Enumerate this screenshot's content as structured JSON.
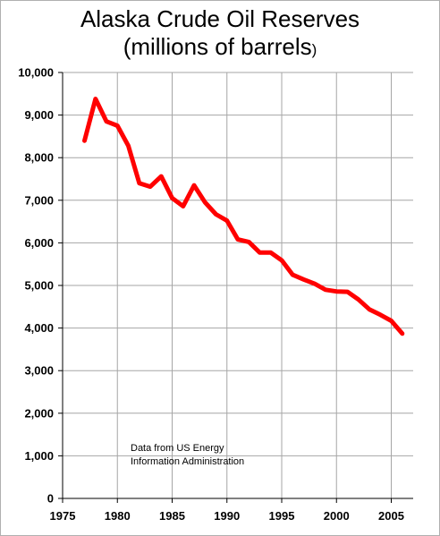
{
  "chart_data": {
    "type": "line",
    "title_line1": "Alaska Crude Oil Reserves",
    "title_line2": "(millions of barrels",
    "title_line2_paren": ")",
    "xlabel": "",
    "ylabel": "",
    "xlim": [
      1975,
      2007
    ],
    "ylim": [
      0,
      10000
    ],
    "x_ticks": [
      1975,
      1980,
      1985,
      1990,
      1995,
      2000,
      2005
    ],
    "x_tick_labels": [
      "1975",
      "1980",
      "1985",
      "1990",
      "1995",
      "2000",
      "2005"
    ],
    "y_ticks": [
      0,
      1000,
      2000,
      3000,
      4000,
      5000,
      6000,
      7000,
      8000,
      9000,
      10000
    ],
    "y_tick_labels": [
      "0",
      "1,000",
      "2,000",
      "3,000",
      "4,000",
      "5,000",
      "6,000",
      "7,000",
      "8,000",
      "9,000",
      "10,000"
    ],
    "grid": true,
    "line_color": "#ff0000",
    "annotation_line1": "Data from US Energy",
    "annotation_line2": "Information Administration",
    "series": [
      {
        "x": [
          1977,
          1978,
          1979,
          1980,
          1981,
          1982,
          1983,
          1984,
          1985,
          1986,
          1987,
          1988,
          1989,
          1990,
          1991,
          1992,
          1993,
          1994,
          1995,
          1996,
          1997,
          1998,
          1999,
          2000,
          2001,
          2002,
          2003,
          2004,
          2005,
          2006
        ],
        "values": [
          8400,
          9380,
          8850,
          8750,
          8280,
          7400,
          7320,
          7560,
          7050,
          6860,
          7350,
          6950,
          6670,
          6520,
          6080,
          6020,
          5770,
          5770,
          5590,
          5250,
          5140,
          5040,
          4900,
          4860,
          4850,
          4670,
          4440,
          4310,
          4170,
          3870
        ]
      }
    ]
  }
}
